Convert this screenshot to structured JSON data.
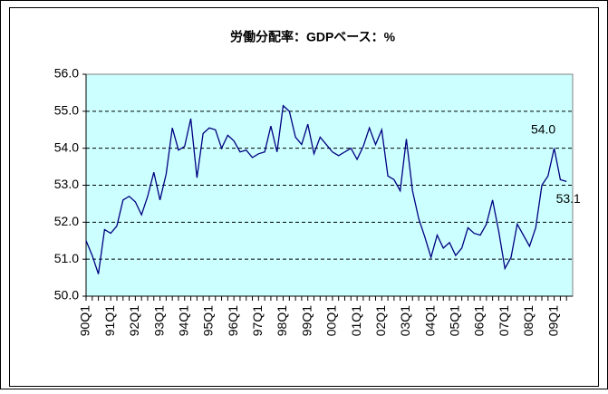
{
  "chart_data": {
    "type": "line",
    "title": "労働分配率：GDPベース：%",
    "categories": [
      "90Q1",
      null,
      null,
      null,
      "91Q1",
      null,
      null,
      null,
      "92Q1",
      null,
      null,
      null,
      "93Q1",
      null,
      null,
      null,
      "94Q1",
      null,
      null,
      null,
      "95Q1",
      null,
      null,
      null,
      "96Q1",
      null,
      null,
      null,
      "97Q1",
      null,
      null,
      null,
      "98Q1",
      null,
      null,
      null,
      "99Q1",
      null,
      null,
      null,
      "00Q1",
      null,
      null,
      null,
      "01Q1",
      null,
      null,
      null,
      "02Q1",
      null,
      null,
      null,
      "03Q1",
      null,
      null,
      null,
      "04Q1",
      null,
      null,
      null,
      "05Q1",
      null,
      null,
      null,
      "06Q1",
      null,
      null,
      null,
      "07Q1",
      null,
      null,
      null,
      "08Q1",
      null,
      null,
      null,
      "09Q1",
      null,
      null
    ],
    "values": [
      51.5,
      51.1,
      50.6,
      51.8,
      51.7,
      51.9,
      52.6,
      52.7,
      52.55,
      52.2,
      52.7,
      53.35,
      52.6,
      53.3,
      54.55,
      53.95,
      54.05,
      54.8,
      53.2,
      54.4,
      54.55,
      54.5,
      54.0,
      54.35,
      54.2,
      53.9,
      53.95,
      53.75,
      53.85,
      53.9,
      54.6,
      53.9,
      55.15,
      55.0,
      54.3,
      54.1,
      54.65,
      53.85,
      54.3,
      54.1,
      53.9,
      53.8,
      53.9,
      54.0,
      53.7,
      54.05,
      54.55,
      54.1,
      54.5,
      53.25,
      53.15,
      52.85,
      54.25,
      52.85,
      52.1,
      51.6,
      51.05,
      51.65,
      51.3,
      51.45,
      51.1,
      51.3,
      51.85,
      51.7,
      51.65,
      51.95,
      52.6,
      51.75,
      50.75,
      51.05,
      51.95,
      51.65,
      51.35,
      51.85,
      53.0,
      53.25,
      54.0,
      53.15,
      53.1
    ],
    "value_labels": [
      null,
      null,
      null,
      null,
      null,
      null,
      null,
      null,
      null,
      null,
      null,
      null,
      null,
      null,
      null,
      null,
      null,
      null,
      null,
      null,
      null,
      null,
      null,
      null,
      null,
      null,
      null,
      null,
      null,
      null,
      null,
      null,
      null,
      null,
      null,
      null,
      null,
      null,
      null,
      null,
      null,
      null,
      null,
      null,
      null,
      null,
      null,
      null,
      null,
      null,
      null,
      null,
      null,
      null,
      null,
      null,
      null,
      null,
      null,
      null,
      null,
      null,
      null,
      null,
      null,
      null,
      null,
      null,
      null,
      null,
      null,
      null,
      null,
      null,
      null,
      null,
      "54.0",
      null,
      "53.1"
    ],
    "color": "#000080",
    "ylim": [
      50,
      56
    ],
    "yticks": [
      {
        "value": 50,
        "label": "50.0"
      },
      {
        "value": 51,
        "label": "51.0"
      },
      {
        "value": 52,
        "label": "52.0"
      },
      {
        "value": 53,
        "label": "53.0"
      },
      {
        "value": 54,
        "label": "54.0"
      },
      {
        "value": 55,
        "label": "55.0"
      },
      {
        "value": 56,
        "label": "56.0"
      }
    ],
    "grid": true
  }
}
